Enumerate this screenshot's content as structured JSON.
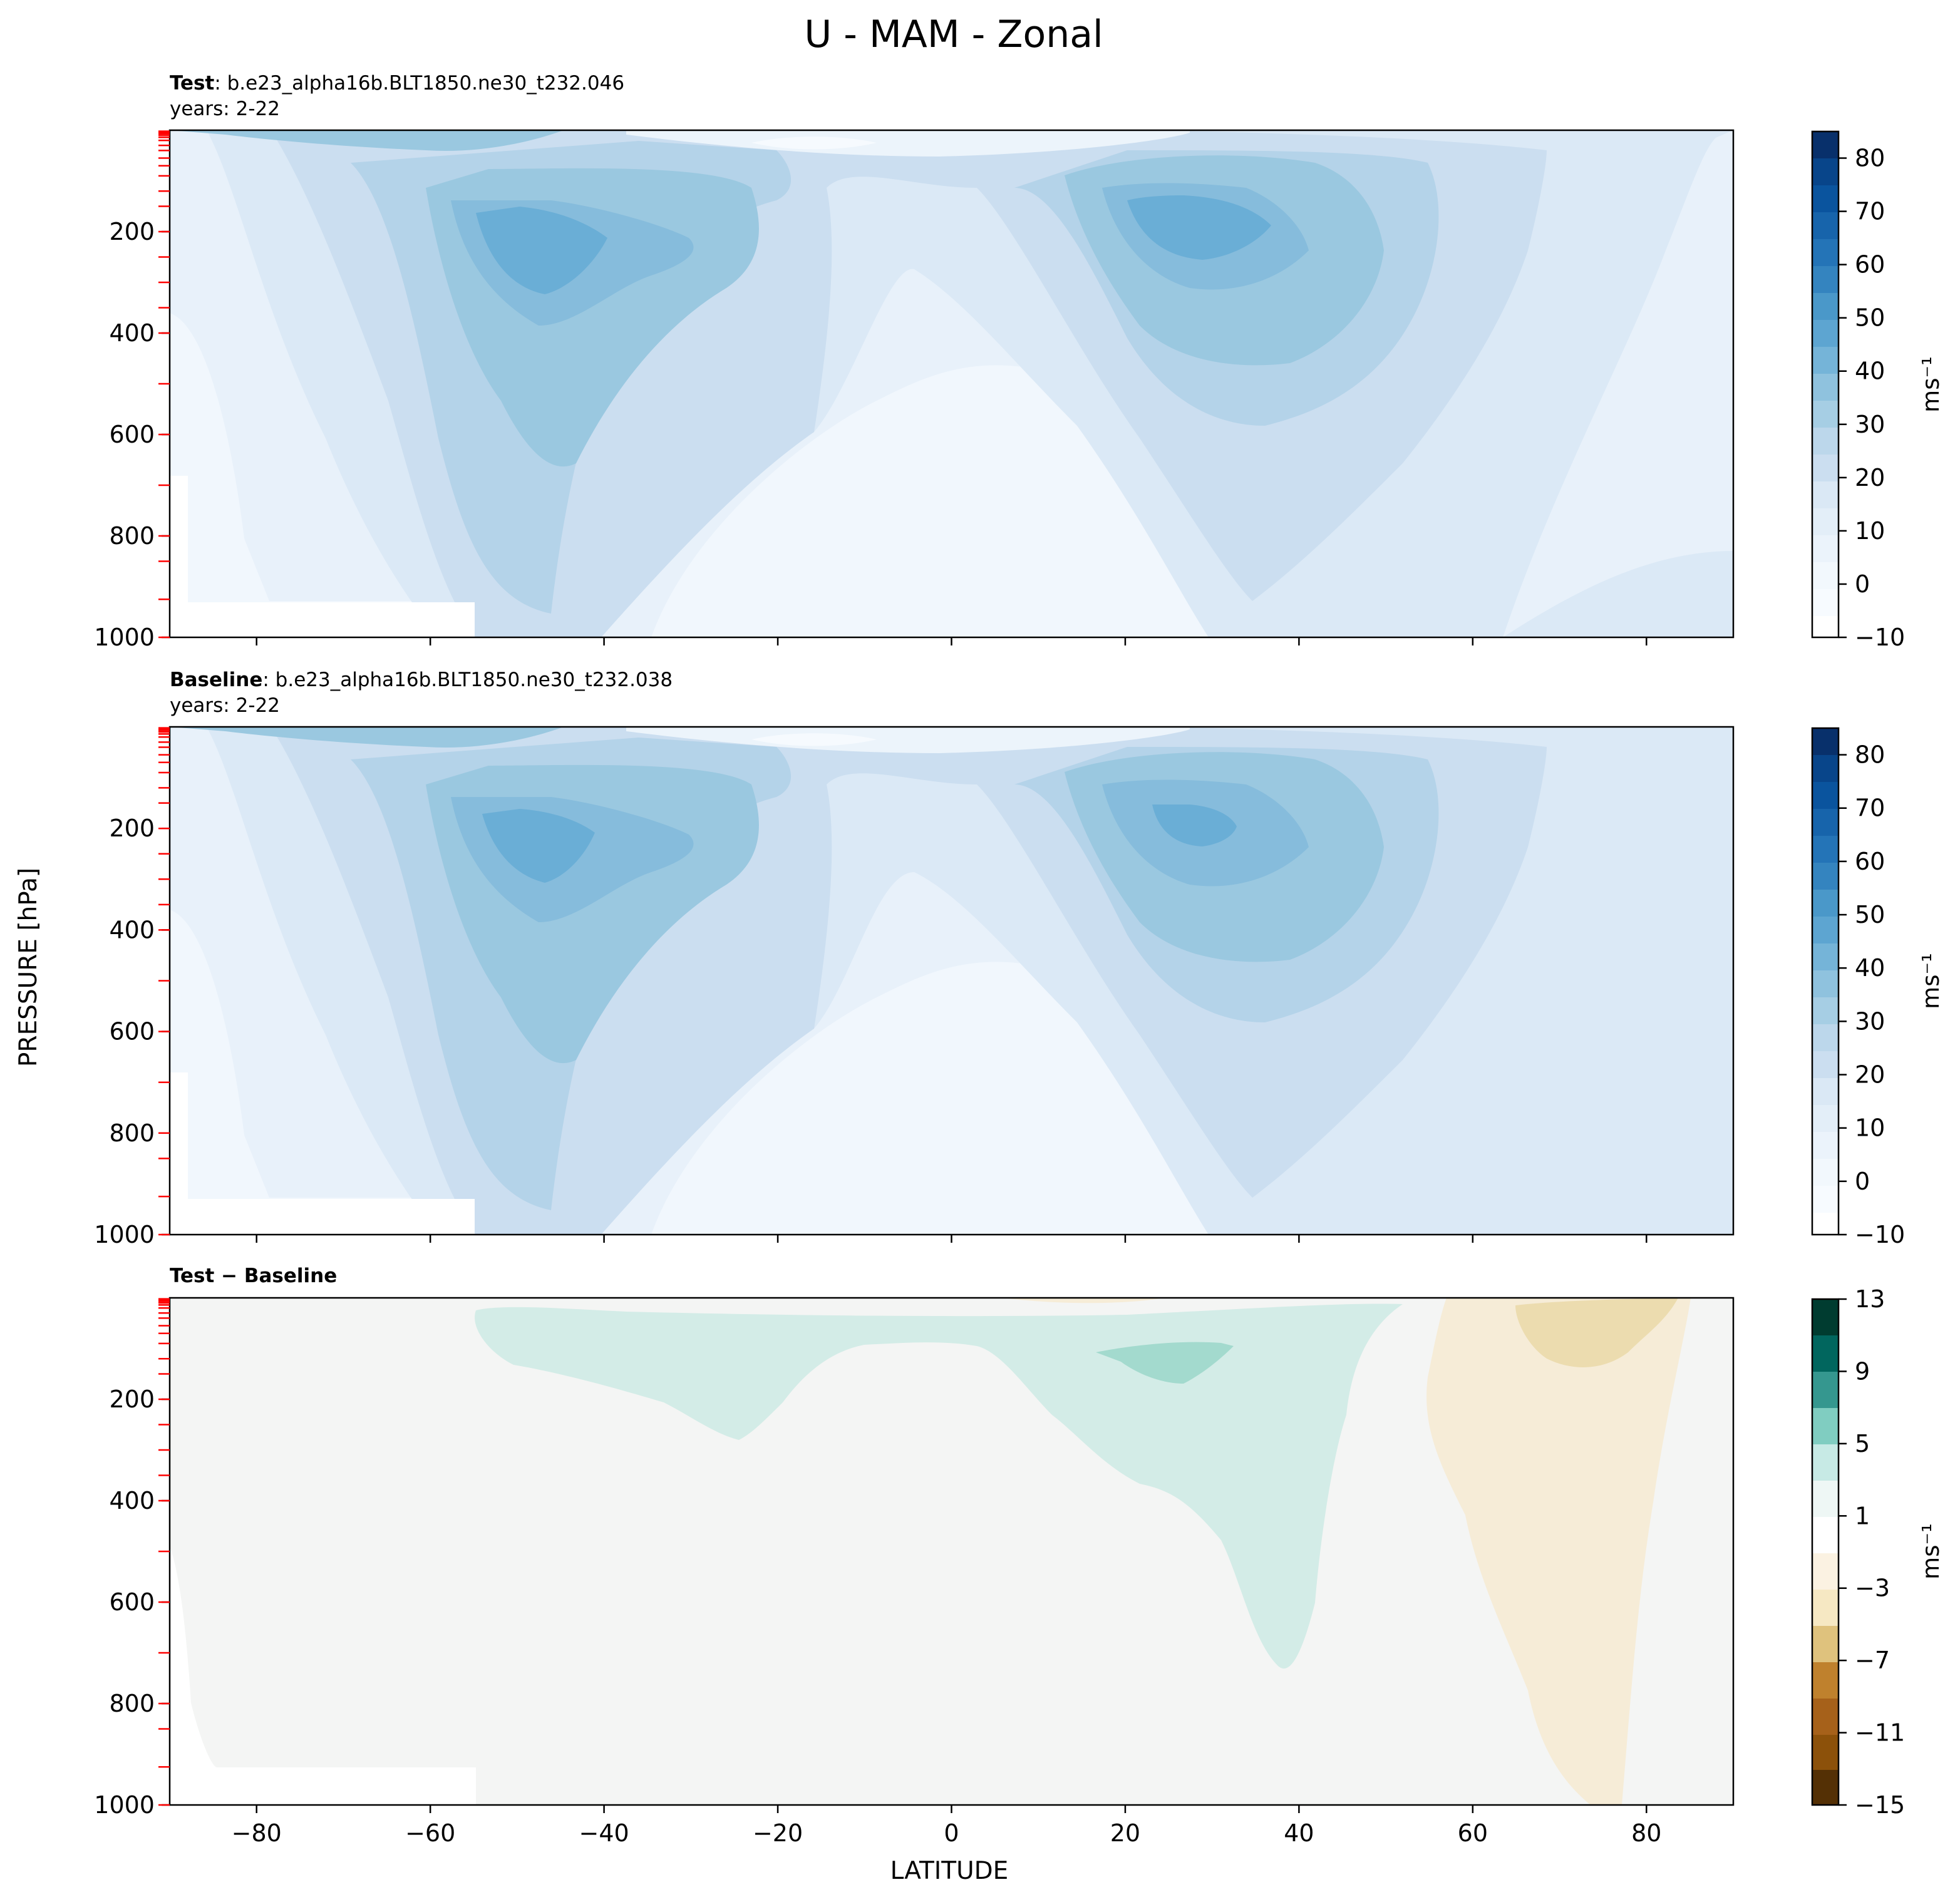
{
  "chart_data": {
    "type": "heatmap",
    "title": "U - MAM - Zonal",
    "xlabel": "LATITUDE",
    "ylabel": "PRESSURE [hPa]",
    "xlim": [
      -90,
      90
    ],
    "ylim": [
      1000,
      0
    ],
    "x_ticks": [
      "−80",
      "−60",
      "−40",
      "−20",
      "0",
      "20",
      "40",
      "60",
      "80"
    ],
    "x_tick_values": [
      -80,
      -60,
      -40,
      -20,
      0,
      20,
      40,
      60,
      80
    ],
    "y_ticks": [
      "200",
      "400",
      "600",
      "800",
      "1000"
    ],
    "y_tick_values": [
      200,
      400,
      600,
      800,
      1000
    ],
    "panels": [
      {
        "id": "test",
        "label_bold": "Test",
        "label_rest": ": b.e23_alpha16b.BLT1850.ne30_t232.046",
        "years": "years: 2-22",
        "colormap": "Blues",
        "colorbar_ticks": [
          "80",
          "70",
          "60",
          "50",
          "40",
          "30",
          "20",
          "10",
          "0",
          "−10"
        ],
        "colorbar_range": [
          -10,
          85
        ],
        "units": "ms⁻¹",
        "contour_levels": [
          -10,
          -5,
          0,
          5,
          10,
          15,
          20,
          25,
          30,
          35,
          40,
          45,
          50,
          55,
          60,
          65,
          70,
          75,
          80,
          85
        ],
        "features": [
          {
            "name": "Southern subtropical jet core",
            "lat": -48,
            "pressure_hPa": 220,
            "value": 40
          },
          {
            "name": "Northern subtropical jet core",
            "lat": 28,
            "pressure_hPa": 190,
            "value": 40
          },
          {
            "name": "Equatorial easterlies",
            "lat": -12,
            "pressure_hPa": 30,
            "value": -10
          }
        ]
      },
      {
        "id": "baseline",
        "label_bold": "Baseline",
        "label_rest": ": b.e23_alpha16b.BLT1850.ne30_t232.038",
        "years": "years: 2-22",
        "colormap": "Blues",
        "colorbar_ticks": [
          "80",
          "70",
          "60",
          "50",
          "40",
          "30",
          "20",
          "10",
          "0",
          "−10"
        ],
        "colorbar_range": [
          -10,
          85
        ],
        "units": "ms⁻¹",
        "contour_levels": [
          -10,
          -5,
          0,
          5,
          10,
          15,
          20,
          25,
          30,
          35,
          40,
          45,
          50,
          55,
          60,
          65,
          70,
          75,
          80,
          85
        ],
        "features": [
          {
            "name": "Southern subtropical jet core",
            "lat": -48,
            "pressure_hPa": 220,
            "value": 40
          },
          {
            "name": "Northern subtropical jet core",
            "lat": 27,
            "pressure_hPa": 190,
            "value": 40
          },
          {
            "name": "Equatorial easterlies",
            "lat": -12,
            "pressure_hPa": 30,
            "value": -10
          }
        ]
      },
      {
        "id": "diff",
        "label_bold": "Test − Baseline",
        "label_rest": "",
        "years": "",
        "colormap": "BrBG",
        "colorbar_ticks": [
          "13",
          "9",
          "5",
          "1",
          "−3",
          "−7",
          "−11",
          "−15"
        ],
        "colorbar_range": [
          -15,
          13
        ],
        "units": "ms⁻¹",
        "contour_levels": [
          -15,
          -13,
          -11,
          -9,
          -7,
          -5,
          -3,
          -1,
          1,
          3,
          5,
          7,
          9,
          11,
          13
        ],
        "features": [
          {
            "name": "Positive difference band",
            "lat": -10,
            "pressure_hPa": 150,
            "value": 2
          },
          {
            "name": "Positive difference maximum",
            "lat": 25,
            "pressure_hPa": 120,
            "value": 4
          },
          {
            "name": "Negative difference region",
            "lat": 72,
            "pressure_hPa": 80,
            "value": -4
          }
        ]
      }
    ]
  }
}
